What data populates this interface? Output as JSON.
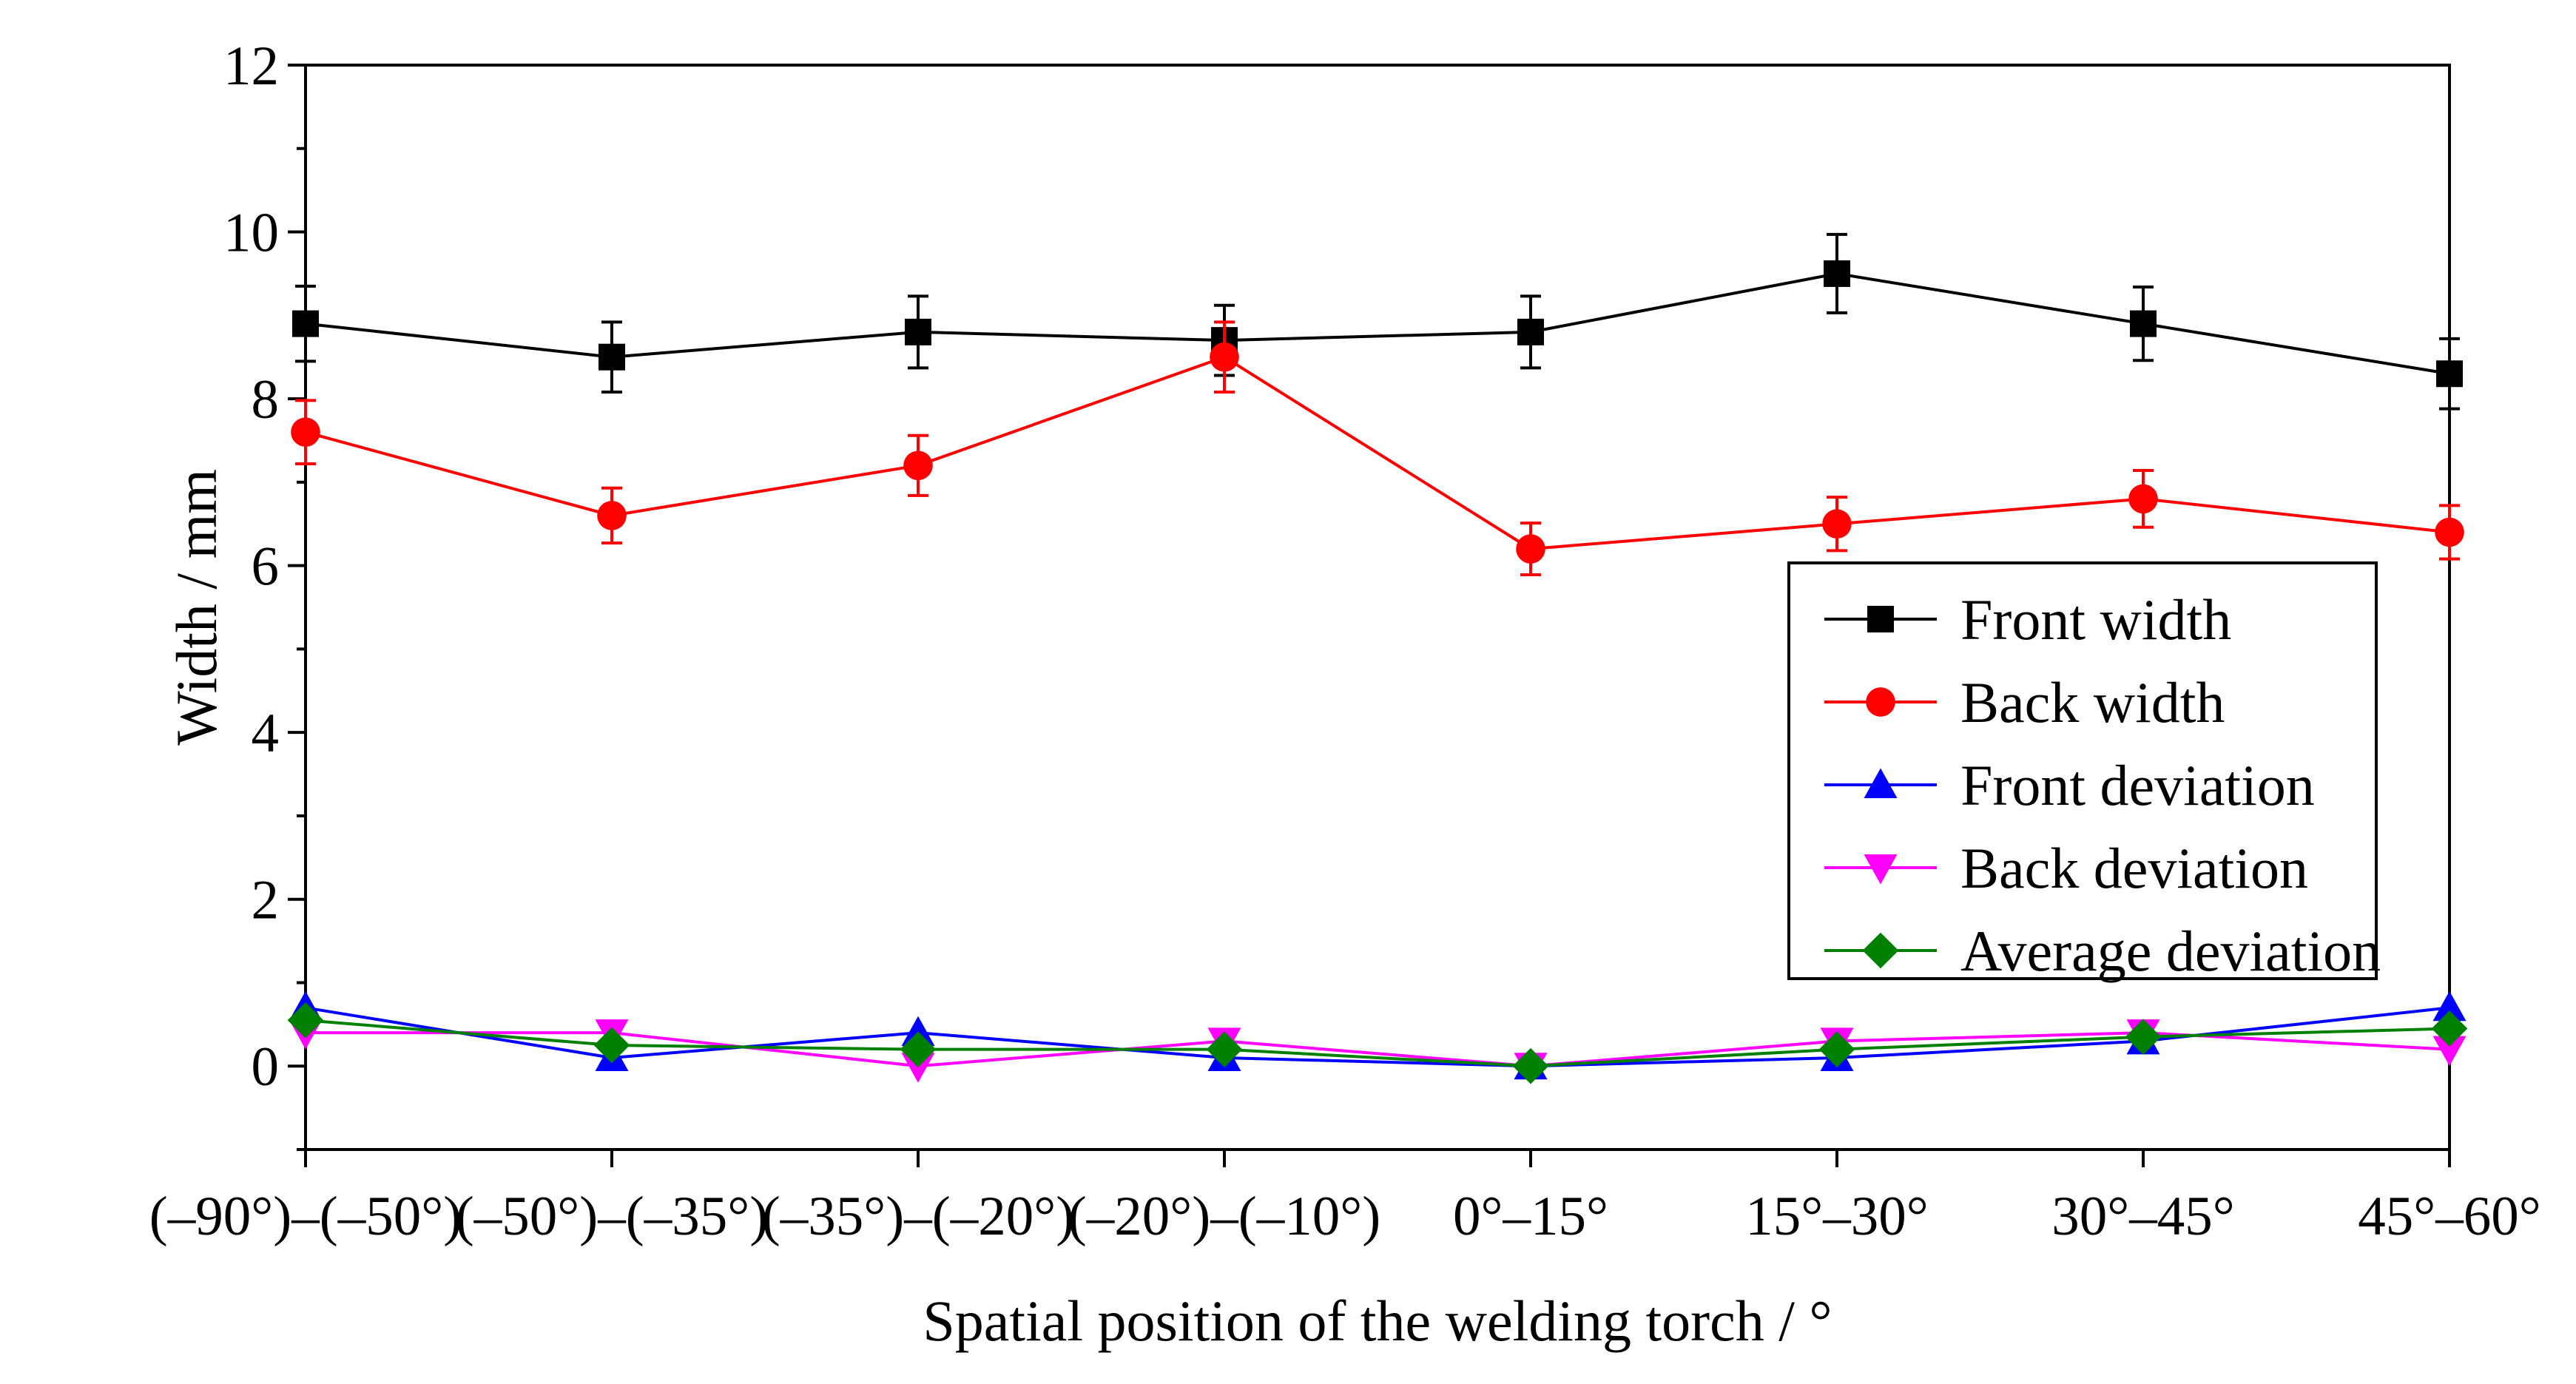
{
  "chart_data": {
    "type": "line",
    "xlabel": "Spatial position of the welding torch / °",
    "ylabel": "Width / mm",
    "categories": [
      "(–90°)–(–50°)",
      "(–50°)–(–35°)",
      "(–35°)–(–20°)",
      "(–20°)–(–10°)",
      "0°–15°",
      "15°–30°",
      "30°–45°",
      "45°–60°"
    ],
    "ylim": [
      -1,
      12
    ],
    "yticks": [
      0,
      2,
      4,
      6,
      8,
      10,
      12
    ],
    "grid": false,
    "legend_position": "center-right",
    "series": [
      {
        "name": "Front width",
        "color": "#000000",
        "marker": "square",
        "values": [
          8.9,
          8.5,
          8.8,
          8.7,
          8.8,
          9.5,
          8.9,
          8.3
        ],
        "error": [
          0.45,
          0.42,
          0.43,
          0.42,
          0.43,
          0.47,
          0.44,
          0.42
        ]
      },
      {
        "name": "Back width",
        "color": "#ff0000",
        "marker": "circle",
        "values": [
          7.6,
          6.6,
          7.2,
          8.5,
          6.2,
          6.5,
          6.8,
          6.4
        ],
        "error": [
          0.38,
          0.33,
          0.36,
          0.42,
          0.31,
          0.32,
          0.34,
          0.32
        ]
      },
      {
        "name": "Front deviation",
        "color": "#0000ff",
        "marker": "triangle-up",
        "values": [
          0.7,
          0.1,
          0.4,
          0.1,
          0.0,
          0.1,
          0.3,
          0.7
        ]
      },
      {
        "name": "Back deviation",
        "color": "#ff00ff",
        "marker": "triangle-down",
        "values": [
          0.4,
          0.4,
          0.0,
          0.3,
          0.0,
          0.3,
          0.4,
          0.2
        ]
      },
      {
        "name": "Average deviation",
        "color": "#008000",
        "marker": "diamond",
        "values": [
          0.55,
          0.25,
          0.2,
          0.2,
          0.0,
          0.2,
          0.35,
          0.45
        ]
      }
    ]
  }
}
